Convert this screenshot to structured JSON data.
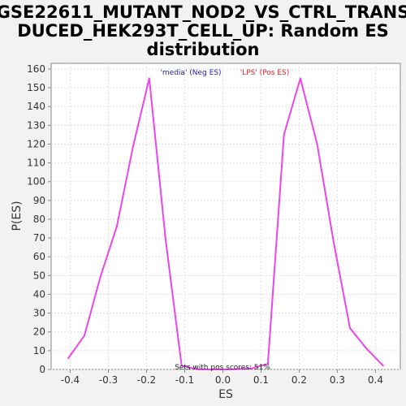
{
  "chart_data": {
    "type": "line",
    "title_lines": [
      "GSE22611_MUTANT_NOD2_VS_CTRL_TRANS",
      "DUCED_HEK293T_CELL_UP: Random ES",
      "distribution"
    ],
    "xlabel": "ES",
    "ylabel": "P(ES)",
    "xlim": [
      -0.45,
      0.465
    ],
    "ylim": [
      0,
      163
    ],
    "x_ticks": [
      -0.4,
      -0.3,
      -0.2,
      -0.1,
      0.0,
      0.1,
      0.2,
      0.3,
      0.4
    ],
    "x_tick_labels": [
      "-0.4",
      "-0.3",
      "-0.2",
      "-0.1",
      "0.0",
      "0.1",
      "0.2",
      "0.3",
      "0.4"
    ],
    "y_ticks": [
      0,
      10,
      20,
      30,
      40,
      50,
      60,
      70,
      80,
      90,
      100,
      110,
      120,
      130,
      140,
      150,
      160
    ],
    "grid": true,
    "line_color": "#ee44ee",
    "series": [
      {
        "x": [
          -0.405,
          -0.363,
          -0.32,
          -0.278,
          -0.235,
          -0.193,
          -0.15,
          -0.108,
          -0.065,
          -0.023,
          0.02,
          0.075,
          0.118,
          0.16,
          0.203,
          0.247,
          0.29,
          0.333,
          0.377,
          0.42
        ],
        "values": [
          6,
          18,
          50,
          76,
          119,
          155,
          69,
          2,
          0,
          0,
          0,
          0.5,
          3,
          125,
          155,
          120,
          68,
          22,
          11,
          2
        ]
      }
    ],
    "annotations": [
      {
        "text": "'media' (Neg ES)",
        "color": "#2222aa"
      },
      {
        "text": "'LPS' (Pos ES)",
        "color": "#dd2222"
      },
      {
        "text": "Sets with pos scores: 51%",
        "color": "#222222"
      }
    ]
  }
}
